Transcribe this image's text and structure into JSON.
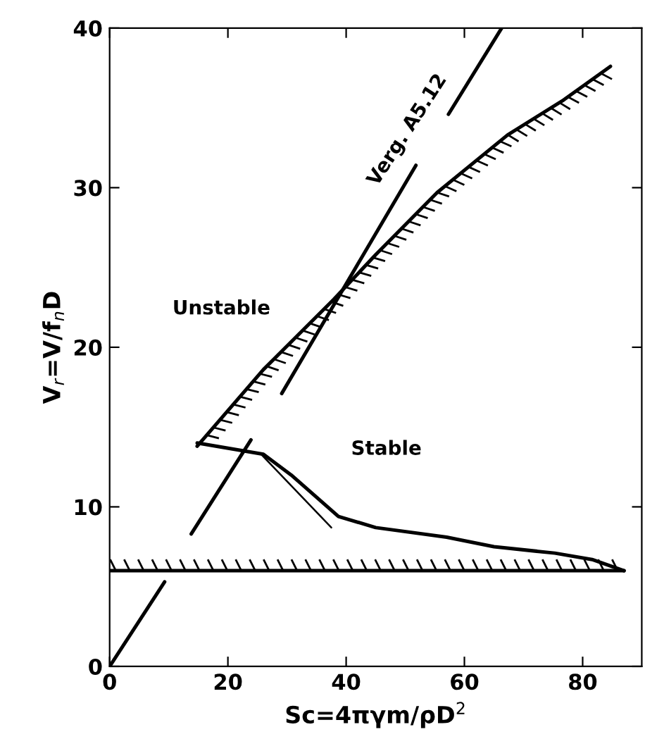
{
  "chart_data": {
    "type": "line",
    "xlabel": "Sc=4πγm/ρD$^{2}$",
    "ylabel": "V$_{r}$=V/f$_{n}$D",
    "xlim": [
      0,
      90
    ],
    "ylim": [
      0,
      40
    ],
    "xticks": [
      0,
      20,
      40,
      60,
      80
    ],
    "yticks": [
      0,
      10,
      20,
      30,
      40
    ],
    "grid": false,
    "legend": false,
    "marker": "none",
    "line_style": "solid",
    "series": [
      {
        "color": "#000000",
        "x": [
          0,
          9.3,
          null,
          13.8,
          23.9,
          null,
          29.1,
          51.8,
          null,
          57.3,
          66.3
        ],
        "values": [
          0,
          5.3,
          null,
          8.3,
          14.2,
          null,
          17.1,
          31.4,
          null,
          34.6,
          40
        ]
      },
      {
        "color": "#000000",
        "x": [
          14.8,
          26,
          37.9,
          45,
          55.4,
          67.3,
          76.8,
          84.7
        ],
        "values": [
          13.8,
          18.6,
          23,
          25.8,
          29.7,
          33.3,
          35.5,
          37.6
        ]
      },
      {
        "color": "#000000",
        "x": [
          14.8,
          26,
          30.7,
          38.7,
          45,
          57,
          65,
          75.3,
          81.6,
          87
        ],
        "values": [
          14.0,
          13.3,
          12.0,
          9.4,
          8.7,
          8.1,
          7.5,
          7.1,
          6.7,
          6.0
        ]
      },
      {
        "color": "#000000",
        "x": [
          25.6,
          37.5
        ],
        "values": [
          13.3,
          8.7
        ]
      },
      {
        "color": "#000000",
        "x": [
          0,
          87
        ],
        "values": [
          6.0,
          6.0
        ]
      }
    ],
    "annotations": [
      "Unstable",
      "Stable",
      "Verg. A5.12"
    ]
  }
}
